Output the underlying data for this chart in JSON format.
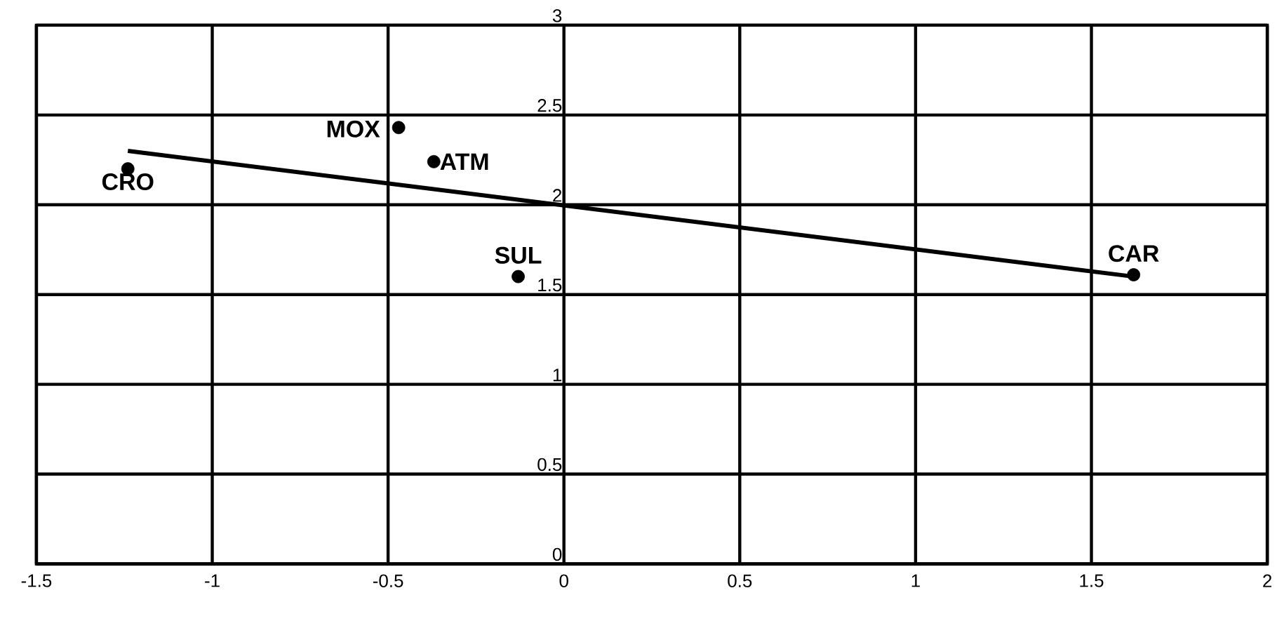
{
  "chart_data": {
    "type": "scatter",
    "series": [
      {
        "color": "#000000",
        "marker": "circle",
        "x": [
          -1.24,
          -0.47,
          -0.37,
          -0.13,
          1.62
        ],
        "values": [
          2.2,
          2.43,
          2.24,
          1.6,
          1.61
        ]
      },
      {
        "type": "line",
        "color": "#000000",
        "line_style": "solid",
        "x": [
          -1.24,
          1.62
        ],
        "values": [
          2.3,
          1.6
        ]
      }
    ],
    "annotations": [
      {
        "text": "CRO",
        "x": -1.24,
        "y": 2.2
      },
      {
        "text": "MOX",
        "x": -0.47,
        "y": 2.43
      },
      {
        "text": "ATM",
        "x": -0.37,
        "y": 2.24
      },
      {
        "text": "SUL",
        "x": -0.13,
        "y": 1.6
      },
      {
        "text": "CAR",
        "x": 1.62,
        "y": 1.61
      }
    ],
    "xlim": [
      -1.5,
      2
    ],
    "ylim": [
      0,
      3
    ],
    "xticks": [
      -1.5,
      -1,
      -0.5,
      0,
      0.5,
      1,
      1.5,
      2
    ],
    "yticks": [
      0,
      0.5,
      1,
      1.5,
      2,
      2.5,
      3
    ],
    "grid": true
  }
}
